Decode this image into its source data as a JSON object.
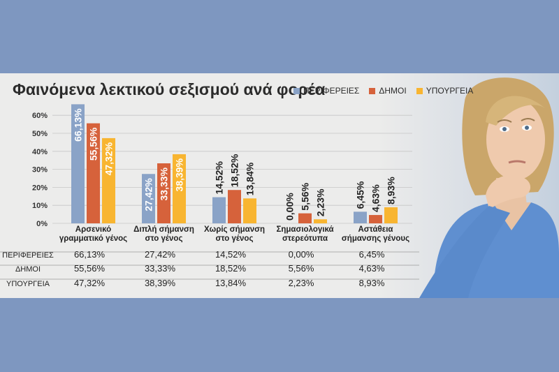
{
  "title": "Φαινόμενα λεκτικού σεξισμού ανά φορέα",
  "colors": {
    "ΠΕΡΙΦΕΡΕΙΕΣ": "#8aa3c7",
    "ΔΗΜΟΙ": "#d6623b",
    "ΥΠΟΥΡΓΕΙΑ": "#f8b531"
  },
  "chart_data": {
    "type": "bar",
    "categories": [
      "Αρσενικό γραμματικό γένος",
      "Διπλή σήμανση στο γένος",
      "Χωρίς σήμανση στο γένος",
      "Σημασιολογικά στερεότυπα",
      "Αστάθεια σήμανσης γένους"
    ],
    "category_lines": [
      [
        "Αρσενικό",
        "γραμματικό γένος"
      ],
      [
        "Διπλή σήμανση",
        "στο γένος"
      ],
      [
        "Χωρίς σήμανση",
        "στο γένος"
      ],
      [
        "Σημασιολογικά",
        "στερεότυπα"
      ],
      [
        "Αστάθεια",
        "σήμανσης γένους"
      ]
    ],
    "series": [
      {
        "name": "ΠΕΡΙΦΕΡΕΙΕΣ",
        "values": [
          66.13,
          27.42,
          14.52,
          0.0,
          6.45
        ],
        "labels": [
          "66,13%",
          "27,42%",
          "14,52%",
          "0,00%",
          "6,45%"
        ]
      },
      {
        "name": "ΔΗΜΟΙ",
        "values": [
          55.56,
          33.33,
          18.52,
          5.56,
          4.63
        ],
        "labels": [
          "55,56%",
          "33,33%",
          "18,52%",
          "5,56%",
          "4,63%"
        ]
      },
      {
        "name": "ΥΠΟΥΡΓΕΙΑ",
        "values": [
          47.32,
          38.39,
          13.84,
          2.23,
          8.93
        ],
        "labels": [
          "47,32%",
          "38,39%",
          "13,84%",
          "2,23%",
          "8,93%"
        ]
      }
    ],
    "yticks": [
      "0%",
      "10%",
      "20%",
      "30%",
      "40%",
      "50%",
      "60%"
    ],
    "ylim": [
      0,
      65
    ],
    "grid": true,
    "legend_position": "top-right"
  }
}
